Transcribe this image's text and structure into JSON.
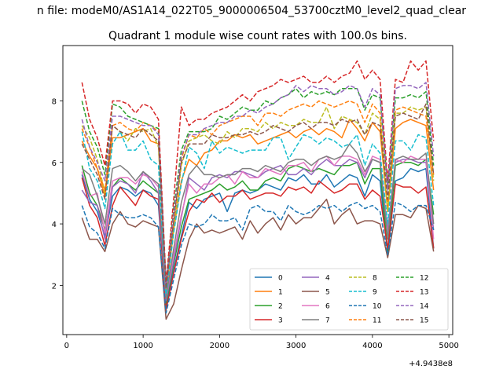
{
  "figure": {
    "suptitle": "n file: modeM0/AS1A14_022T05_9000006504_53700cztM0_level2_quad_clear",
    "title": "Quadrant 1 module wise count rates with 100.0s bins."
  },
  "chart_data": {
    "type": "line",
    "title": "Quadrant 1 module wise count rates with 100.0s bins.",
    "xlabel": "",
    "ylabel": "",
    "x_offset_label": "+4.9438e8",
    "xlim": [
      -50,
      5050
    ],
    "ylim": [
      0.4,
      9.8
    ],
    "xticks": [
      0,
      1000,
      2000,
      3000,
      4000,
      5000
    ],
    "yticks": [
      2,
      4,
      6,
      8
    ],
    "grid": false,
    "legend_position": "lower-right",
    "legend_columns": 4,
    "x": [
      200,
      300,
      400,
      500,
      600,
      700,
      800,
      900,
      1000,
      1100,
      1200,
      1300,
      1400,
      1500,
      1600,
      1700,
      1800,
      1900,
      2000,
      2100,
      2200,
      2300,
      2400,
      2500,
      2600,
      2700,
      2800,
      2900,
      3000,
      3100,
      3200,
      3300,
      3400,
      3500,
      3600,
      3700,
      3800,
      3900,
      4000,
      4100,
      4200,
      4300,
      4400,
      4500,
      4600,
      4700,
      4800
    ],
    "series": [
      {
        "name": "0",
        "color": "#1f77b4",
        "linestyle": "solid",
        "values": [
          5.6,
          4.8,
          4.4,
          3.6,
          4.9,
          5.2,
          5.1,
          4.9,
          5.1,
          5.0,
          4.6,
          1.3,
          2.5,
          3.6,
          4.7,
          4.5,
          4.8,
          4.9,
          5.0,
          4.4,
          5.0,
          5.1,
          5.0,
          5.1,
          5.3,
          5.2,
          5.1,
          5.5,
          5.4,
          5.6,
          5.3,
          5.3,
          5.6,
          5.2,
          5.4,
          5.6,
          5.5,
          4.9,
          5.6,
          5.4,
          3.0,
          5.4,
          5.5,
          5.8,
          5.7,
          5.8,
          3.2
        ]
      },
      {
        "name": "1",
        "color": "#ff7f0e",
        "linestyle": "solid",
        "values": [
          6.7,
          6.2,
          5.8,
          4.9,
          6.8,
          6.8,
          6.9,
          7.0,
          7.1,
          6.7,
          6.6,
          1.7,
          3.8,
          5.4,
          6.1,
          5.9,
          6.3,
          6.4,
          6.7,
          6.7,
          6.9,
          6.8,
          6.9,
          6.6,
          6.7,
          6.8,
          6.9,
          7.0,
          6.8,
          7.0,
          7.1,
          6.9,
          7.1,
          7.0,
          6.8,
          7.4,
          7.1,
          6.7,
          7.3,
          7.0,
          4.4,
          7.1,
          7.3,
          7.4,
          7.3,
          7.2,
          5.1
        ]
      },
      {
        "name": "2",
        "color": "#2ca02c",
        "linestyle": "solid",
        "values": [
          5.9,
          5.0,
          4.6,
          3.8,
          5.2,
          5.5,
          5.3,
          5.1,
          5.4,
          5.2,
          5.0,
          1.4,
          2.7,
          3.9,
          4.8,
          4.9,
          5.0,
          5.1,
          5.3,
          5.1,
          5.2,
          5.4,
          5.1,
          5.1,
          5.4,
          5.5,
          5.4,
          5.8,
          5.9,
          5.8,
          5.7,
          5.8,
          5.7,
          5.6,
          5.9,
          5.9,
          6.0,
          5.3,
          5.8,
          5.8,
          3.1,
          5.9,
          6.0,
          6.0,
          5.9,
          6.1,
          4.3
        ]
      },
      {
        "name": "3",
        "color": "#d62728",
        "linestyle": "solid",
        "values": [
          5.5,
          4.6,
          4.2,
          3.3,
          4.6,
          5.2,
          4.9,
          4.6,
          5.1,
          4.9,
          4.8,
          1.2,
          2.4,
          3.5,
          4.4,
          4.8,
          4.7,
          5.0,
          4.7,
          4.9,
          4.9,
          5.1,
          4.8,
          4.9,
          5.0,
          5.0,
          4.9,
          5.2,
          5.1,
          5.2,
          5.0,
          5.4,
          5.2,
          5.0,
          5.1,
          5.3,
          5.3,
          4.8,
          5.1,
          4.9,
          3.2,
          5.3,
          5.2,
          5.2,
          5.0,
          5.2,
          3.2
        ]
      },
      {
        "name": "4",
        "color": "#9467bd",
        "linestyle": "solid",
        "values": [
          5.1,
          4.7,
          4.6,
          3.5,
          5.2,
          5.4,
          5.3,
          5.0,
          5.7,
          5.4,
          5.0,
          1.5,
          2.8,
          4.2,
          5.5,
          5.3,
          5.1,
          5.5,
          5.6,
          5.5,
          5.7,
          5.7,
          5.6,
          5.5,
          5.7,
          5.8,
          5.9,
          5.6,
          5.6,
          5.8,
          5.6,
          5.9,
          6.1,
          5.9,
          5.9,
          6.1,
          6.0,
          5.5,
          6.1,
          6.0,
          3.8,
          6.0,
          6.1,
          6.1,
          6.0,
          6.0,
          3.8
        ]
      },
      {
        "name": "5",
        "color": "#8c564b",
        "linestyle": "solid",
        "values": [
          4.2,
          3.5,
          3.5,
          3.1,
          4.0,
          4.4,
          4.0,
          3.9,
          4.1,
          4.0,
          3.9,
          0.9,
          1.4,
          2.5,
          3.5,
          4.0,
          3.7,
          3.8,
          3.7,
          3.8,
          3.9,
          3.5,
          4.1,
          3.7,
          4.0,
          4.2,
          3.8,
          4.3,
          4.0,
          4.2,
          4.2,
          4.5,
          4.8,
          4.0,
          4.3,
          4.5,
          4.0,
          4.1,
          4.1,
          4.0,
          2.9,
          4.3,
          4.3,
          4.2,
          4.6,
          4.5,
          3.1
        ]
      },
      {
        "name": "6",
        "color": "#e377c2",
        "linestyle": "solid",
        "values": [
          5.7,
          4.9,
          5.0,
          3.7,
          5.4,
          5.5,
          5.5,
          5.3,
          5.6,
          5.5,
          5.2,
          1.6,
          3.0,
          4.3,
          5.3,
          5.0,
          5.3,
          5.3,
          5.5,
          5.6,
          5.3,
          5.7,
          5.5,
          5.5,
          5.8,
          5.7,
          5.6,
          5.9,
          5.9,
          6.0,
          5.7,
          6.1,
          6.2,
          5.9,
          6.2,
          6.2,
          6.1,
          5.6,
          6.2,
          6.1,
          3.6,
          6.1,
          6.0,
          6.2,
          6.1,
          6.1,
          3.5
        ]
      },
      {
        "name": "7",
        "color": "#7f7f7f",
        "linestyle": "solid",
        "values": [
          5.8,
          5.6,
          4.9,
          4.0,
          5.8,
          5.9,
          5.7,
          5.4,
          5.7,
          5.5,
          5.3,
          1.6,
          3.2,
          4.7,
          5.6,
          5.9,
          5.6,
          5.6,
          5.5,
          5.6,
          5.6,
          5.8,
          5.8,
          5.7,
          5.9,
          5.8,
          5.7,
          6.0,
          6.1,
          6.1,
          5.9,
          6.1,
          6.2,
          6.1,
          6.2,
          6.6,
          6.3,
          5.7,
          6.1,
          6.0,
          3.5,
          6.1,
          6.2,
          6.1,
          6.1,
          6.3,
          4.0
        ]
      },
      {
        "name": "8",
        "color": "#bcbd22",
        "linestyle": "dashed",
        "values": [
          7.2,
          6.8,
          6.1,
          5.0,
          7.2,
          7.0,
          6.7,
          7.1,
          7.0,
          7.1,
          6.5,
          1.8,
          3.8,
          5.9,
          6.7,
          6.8,
          6.9,
          6.7,
          6.6,
          7.0,
          6.8,
          7.1,
          7.1,
          7.0,
          7.3,
          7.1,
          7.3,
          7.2,
          7.2,
          7.4,
          7.3,
          7.3,
          7.8,
          7.1,
          7.5,
          7.4,
          7.3,
          6.9,
          7.6,
          7.4,
          4.4,
          7.6,
          7.6,
          7.8,
          7.7,
          7.8,
          5.4
        ]
      },
      {
        "name": "9",
        "color": "#17becf",
        "linestyle": "dashed",
        "values": [
          7.0,
          5.8,
          5.4,
          4.5,
          6.6,
          7.0,
          6.4,
          6.4,
          6.7,
          6.1,
          5.9,
          1.7,
          3.7,
          5.3,
          6.5,
          6.3,
          5.8,
          6.7,
          6.3,
          6.5,
          6.4,
          6.3,
          6.4,
          6.4,
          6.4,
          6.8,
          6.8,
          6.1,
          6.5,
          6.9,
          6.8,
          6.6,
          6.8,
          6.7,
          6.5,
          6.6,
          6.9,
          5.9,
          6.6,
          6.3,
          4.0,
          6.7,
          6.7,
          6.4,
          6.9,
          6.8,
          4.6
        ]
      },
      {
        "name": "10",
        "color": "#1f77b4",
        "linestyle": "dashed",
        "values": [
          4.6,
          3.9,
          3.7,
          3.2,
          4.5,
          4.3,
          4.2,
          4.2,
          4.3,
          4.2,
          3.9,
          1.1,
          2.2,
          3.3,
          4.0,
          3.9,
          4.0,
          4.3,
          4.1,
          4.1,
          4.2,
          3.8,
          4.5,
          4.6,
          4.4,
          4.4,
          4.1,
          4.6,
          4.4,
          4.3,
          4.4,
          4.6,
          4.5,
          4.6,
          4.4,
          4.6,
          4.7,
          4.5,
          4.6,
          4.4,
          3.0,
          4.7,
          4.6,
          4.4,
          4.6,
          4.6,
          3.8
        ]
      },
      {
        "name": "11",
        "color": "#ff7f0e",
        "linestyle": "dashed",
        "values": [
          7.1,
          6.5,
          5.8,
          5.1,
          7.2,
          7.3,
          7.1,
          7.0,
          7.3,
          7.2,
          7.0,
          1.9,
          4.1,
          6.1,
          6.9,
          6.8,
          7.1,
          6.9,
          7.2,
          7.3,
          7.4,
          7.5,
          7.5,
          7.2,
          7.6,
          7.6,
          7.5,
          7.7,
          7.8,
          7.9,
          7.8,
          8.0,
          7.9,
          7.8,
          7.9,
          8.0,
          7.9,
          7.3,
          7.9,
          7.6,
          4.7,
          7.7,
          7.8,
          7.7,
          7.6,
          7.5,
          5.6
        ]
      },
      {
        "name": "12",
        "color": "#2ca02c",
        "linestyle": "dashed",
        "values": [
          8.0,
          7.0,
          6.5,
          5.6,
          7.9,
          7.8,
          7.5,
          7.4,
          7.3,
          7.2,
          7.1,
          2.0,
          4.5,
          6.4,
          7.0,
          7.0,
          7.0,
          7.1,
          7.5,
          7.4,
          7.6,
          7.8,
          7.7,
          7.7,
          8.0,
          7.9,
          8.1,
          8.2,
          8.4,
          8.1,
          8.3,
          8.2,
          8.3,
          8.2,
          8.4,
          8.4,
          8.4,
          7.7,
          8.2,
          8.1,
          5.2,
          8.1,
          8.1,
          8.2,
          8.1,
          8.3,
          5.9
        ]
      },
      {
        "name": "13",
        "color": "#d62728",
        "linestyle": "dashed",
        "values": [
          8.6,
          7.4,
          6.8,
          5.9,
          8.0,
          8.0,
          7.9,
          7.6,
          7.9,
          7.8,
          7.4,
          2.1,
          4.8,
          7.8,
          7.2,
          7.4,
          7.4,
          7.6,
          7.7,
          7.8,
          8.0,
          8.2,
          8.0,
          8.3,
          8.4,
          8.5,
          8.7,
          8.6,
          8.7,
          8.8,
          8.6,
          8.6,
          8.8,
          8.6,
          8.8,
          8.9,
          9.3,
          8.7,
          9.0,
          8.7,
          5.4,
          8.7,
          8.6,
          9.3,
          9.0,
          9.3,
          6.7
        ]
      },
      {
        "name": "14",
        "color": "#9467bd",
        "linestyle": "dashed",
        "values": [
          7.4,
          6.5,
          6.0,
          5.4,
          7.5,
          7.5,
          7.4,
          7.3,
          7.2,
          7.2,
          6.9,
          1.9,
          4.3,
          6.2,
          6.9,
          6.9,
          7.1,
          7.2,
          7.3,
          7.3,
          7.5,
          7.5,
          7.7,
          7.6,
          7.8,
          7.9,
          8.1,
          8.2,
          8.5,
          8.3,
          8.5,
          8.4,
          8.4,
          8.2,
          8.3,
          8.5,
          8.4,
          7.8,
          8.4,
          8.2,
          5.1,
          8.4,
          8.5,
          8.5,
          8.4,
          8.6,
          6.2
        ]
      },
      {
        "name": "15",
        "color": "#8c564b",
        "linestyle": "dashed",
        "values": [
          6.6,
          6.1,
          5.6,
          4.8,
          7.2,
          7.0,
          6.9,
          6.8,
          7.1,
          6.9,
          6.7,
          1.9,
          4.1,
          6.0,
          6.6,
          6.6,
          6.6,
          6.9,
          6.8,
          6.8,
          6.9,
          6.9,
          7.0,
          6.9,
          7.0,
          7.2,
          7.1,
          7.0,
          7.2,
          7.3,
          7.1,
          7.3,
          7.3,
          7.2,
          7.4,
          7.3,
          7.4,
          6.9,
          7.3,
          7.2,
          4.8,
          7.5,
          7.6,
          7.5,
          7.4,
          7.9,
          5.6
        ]
      }
    ]
  }
}
